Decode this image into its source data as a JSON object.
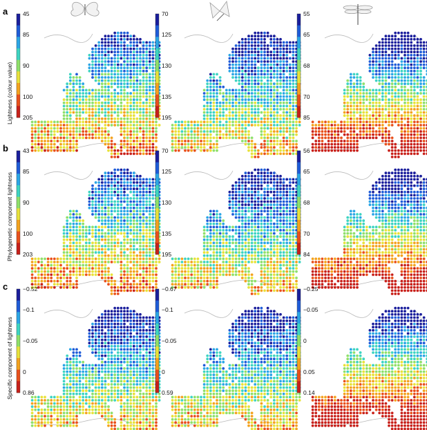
{
  "figure": {
    "panel_labels": [
      "a",
      "b",
      "c"
    ],
    "row_ylabels": [
      "Lightness (colour value)",
      "Phylogenetic component lightness",
      "Specific component of lightness"
    ],
    "column_icons": [
      "butterfly-icon",
      "moth-icon",
      "dragonfly-icon"
    ],
    "colorbar_ticks": [
      [
        [
          "45",
          "85",
          "90",
          "100",
          "205"
        ],
        [
          "70",
          "125",
          "130",
          "135",
          "195"
        ],
        [
          "55",
          "65",
          "68",
          "70",
          "85"
        ]
      ],
      [
        [
          "43",
          "85",
          "90",
          "100",
          "203"
        ],
        [
          "70",
          "125",
          "130",
          "135",
          "195"
        ],
        [
          "56",
          "65",
          "68",
          "70",
          "84"
        ]
      ],
      [
        [
          "−0.52",
          "−0.1",
          "−0.05",
          "0",
          "0.86"
        ],
        [
          "−0.67",
          "−0.1",
          "−0.05",
          "0",
          "0.59"
        ],
        [
          "−0.25",
          "−0.05",
          "0",
          "0.05",
          "0.14"
        ]
      ]
    ],
    "colormap": [
      "#1a1e9c",
      "#1f5cd8",
      "#2ba6e6",
      "#3dd4c2",
      "#8fe06a",
      "#e8e23a",
      "#f4a21e",
      "#e9501b",
      "#c8201a"
    ],
    "map_mean_level": [
      [
        0.45,
        0.35,
        0.45
      ],
      [
        0.45,
        0.35,
        0.45
      ],
      [
        0.35,
        0.35,
        0.5
      ]
    ]
  }
}
